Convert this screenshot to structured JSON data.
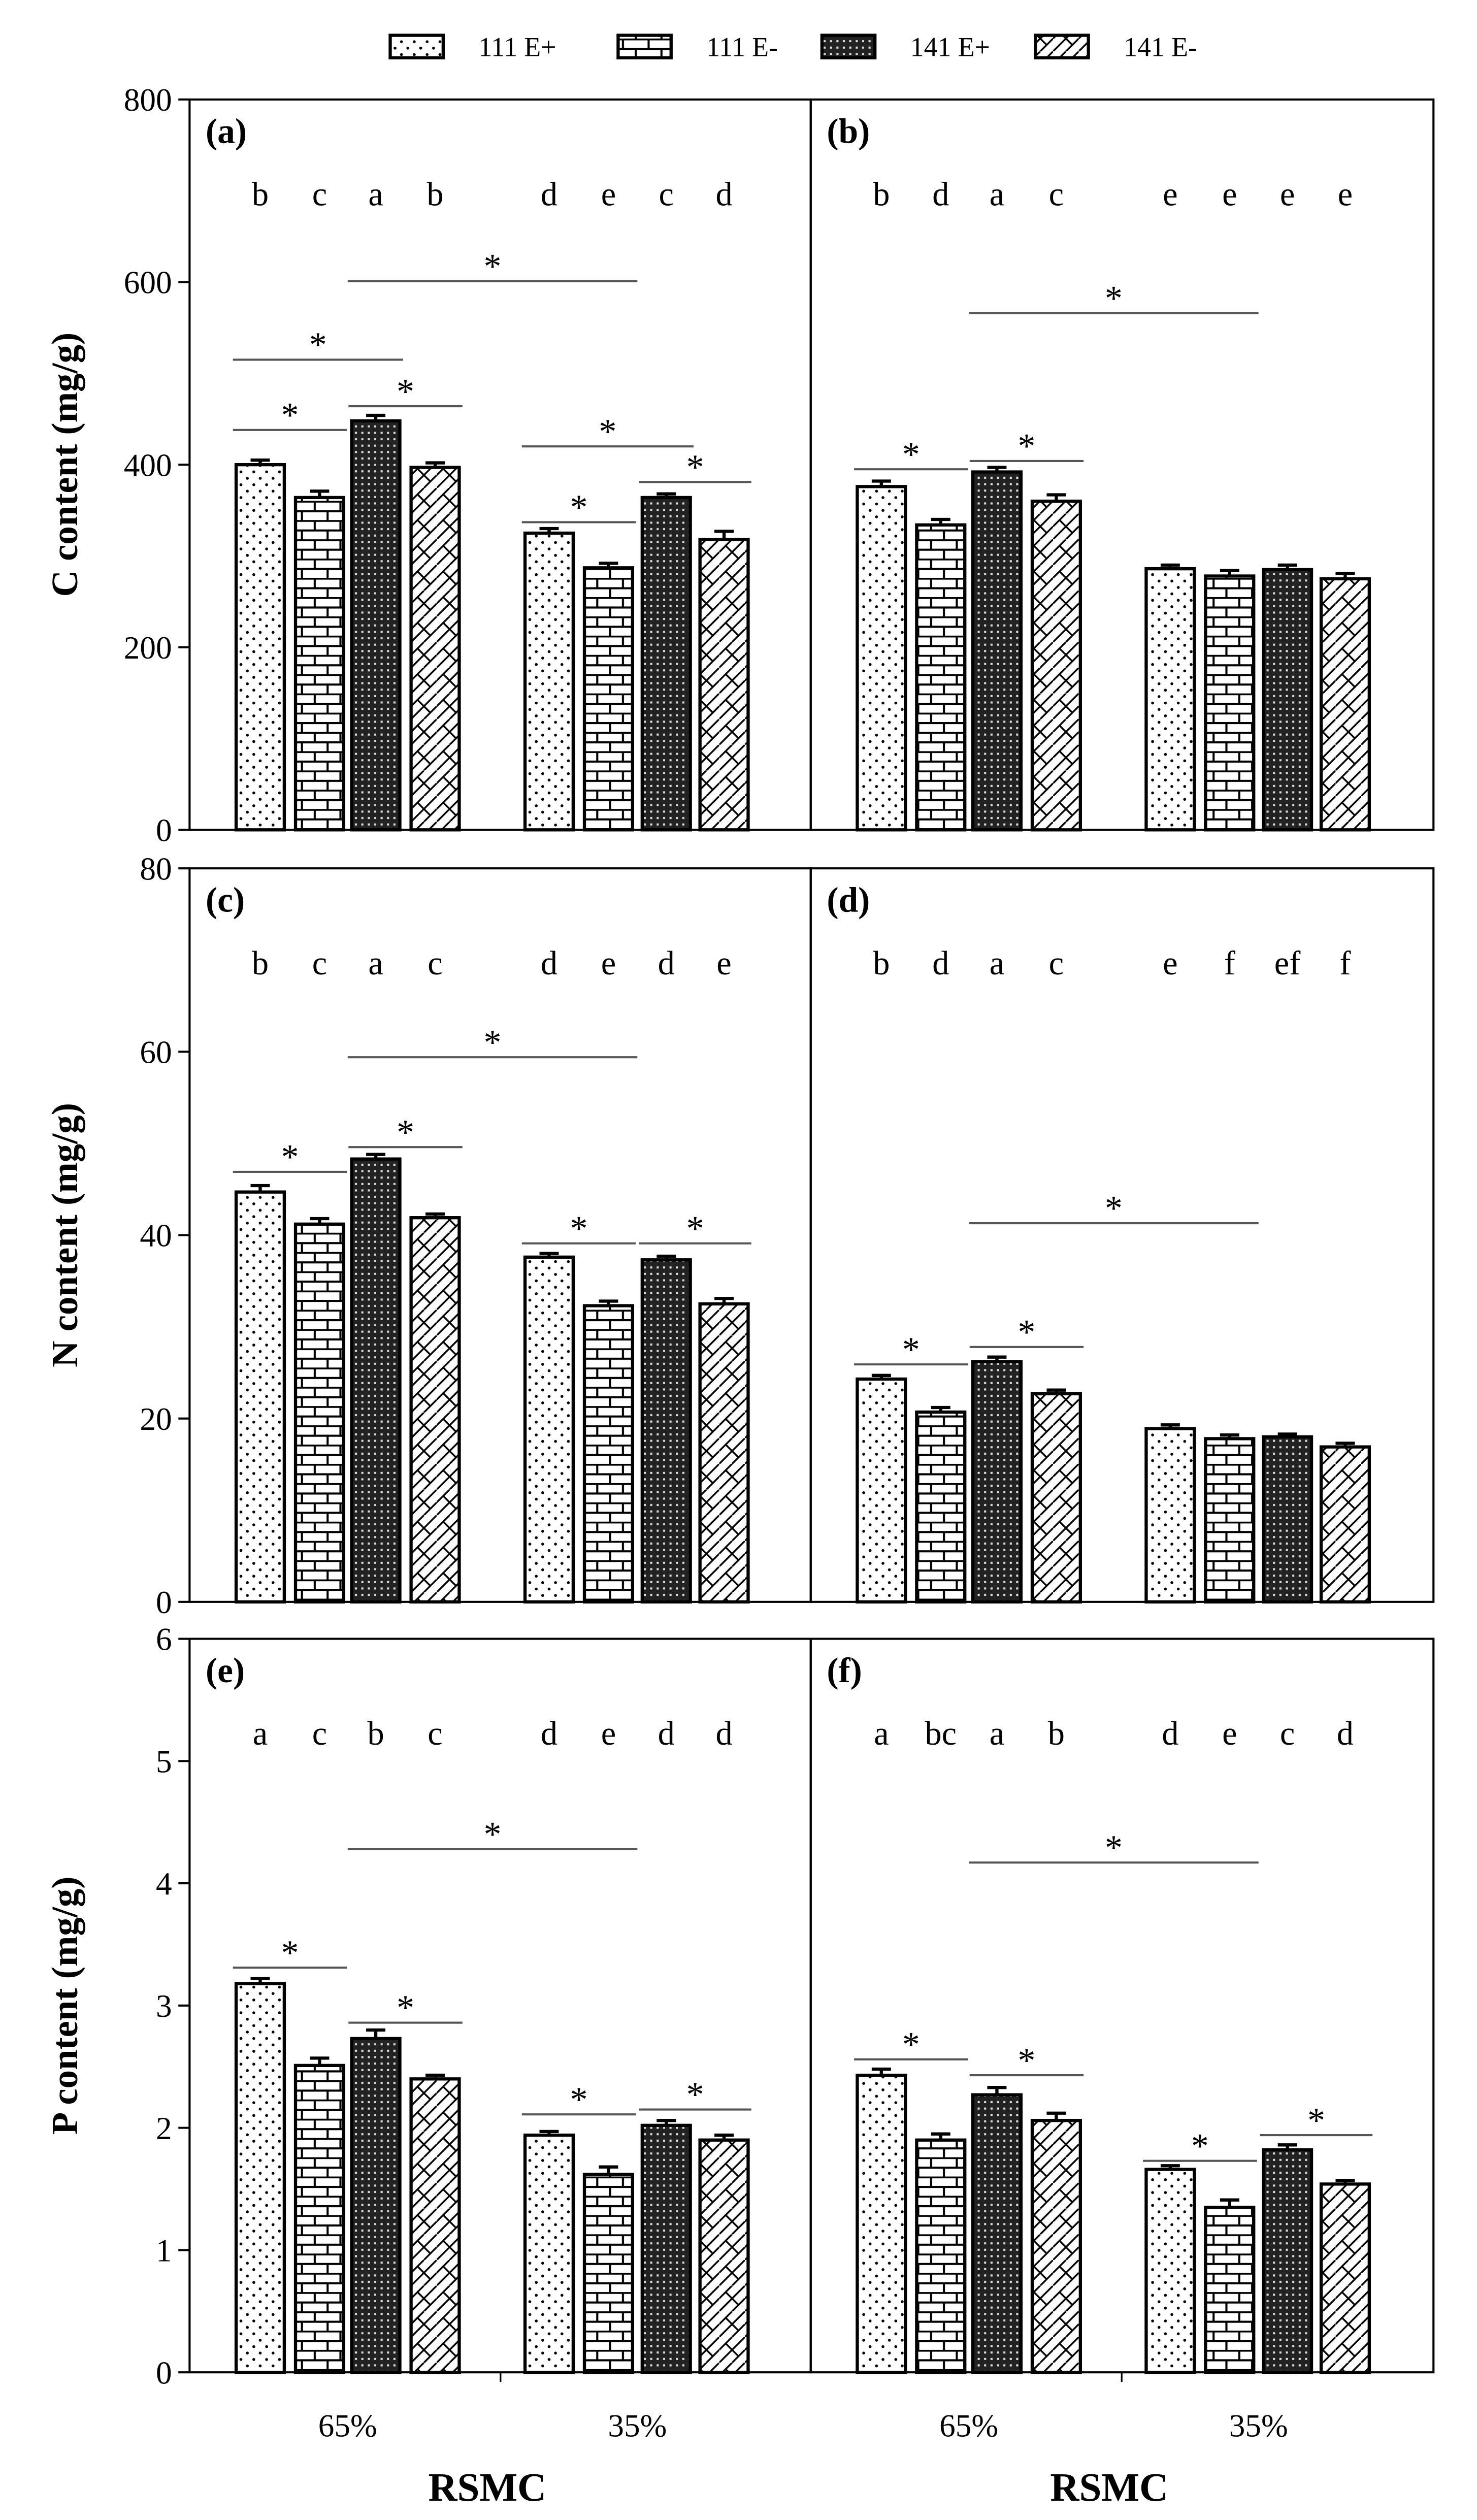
{
  "legend": [
    {
      "label": "111 E+",
      "pattern": "dots"
    },
    {
      "label": "111 E-",
      "pattern": "brick"
    },
    {
      "label": "141 E+",
      "pattern": "crosshatch"
    },
    {
      "label": "141 E-",
      "pattern": "zigzag"
    }
  ],
  "xlabel": "RSMC",
  "categories": [
    "65%",
    "35%"
  ],
  "chart_data": [
    {
      "type": "bar",
      "panel": "(a)",
      "ylabel": "C content (mg/g)",
      "ylim": [
        0,
        800
      ],
      "yticks": [
        0,
        200,
        400,
        600,
        800
      ],
      "show_yaxis": true,
      "series": [
        {
          "name": "111 E+",
          "values": [
            400,
            325
          ],
          "err": [
            5,
            5
          ]
        },
        {
          "name": "111 E-",
          "values": [
            364,
            287
          ],
          "err": [
            7,
            5
          ]
        },
        {
          "name": "141 E+",
          "values": [
            448,
            364
          ],
          "err": [
            6,
            4
          ]
        },
        {
          "name": "141 E-",
          "values": [
            397,
            318
          ],
          "err": [
            5,
            9
          ]
        }
      ],
      "letters": [
        "b",
        "c",
        "a",
        "b",
        "d",
        "e",
        "c",
        "d"
      ],
      "sig": [
        {
          "from": 0,
          "to": 1,
          "y": 438
        },
        {
          "from": 0,
          "to": 2,
          "y": 515
        },
        {
          "from": 2,
          "to": 3,
          "y": 464
        },
        {
          "from": 1.5,
          "to": 5.5,
          "y": 601
        },
        {
          "from": 4,
          "to": 5,
          "y": 337
        },
        {
          "from": 4,
          "to": 6,
          "y": 420
        },
        {
          "from": 6,
          "to": 7,
          "y": 381
        }
      ]
    },
    {
      "type": "bar",
      "panel": "(b)",
      "ylabel": "",
      "ylim": [
        0,
        800
      ],
      "yticks": [
        0,
        200,
        400,
        600,
        800
      ],
      "show_yaxis": false,
      "series": [
        {
          "name": "111 E+",
          "values": [
            376,
            286
          ],
          "err": [
            6,
            4
          ]
        },
        {
          "name": "111 E-",
          "values": [
            334,
            278
          ],
          "err": [
            6,
            6
          ]
        },
        {
          "name": "141 E+",
          "values": [
            392,
            285
          ],
          "err": [
            5,
            5
          ]
        },
        {
          "name": "141 E-",
          "values": [
            360,
            275
          ],
          "err": [
            7,
            6
          ]
        }
      ],
      "letters": [
        "b",
        "d",
        "a",
        "c",
        "e",
        "e",
        "e",
        "e"
      ],
      "sig": [
        {
          "from": 0,
          "to": 1,
          "y": 395
        },
        {
          "from": 2,
          "to": 3,
          "y": 404
        },
        {
          "from": 1.5,
          "to": 5.5,
          "y": 566
        }
      ]
    },
    {
      "type": "bar",
      "panel": "(c)",
      "ylabel": "N content (mg/g)",
      "ylim": [
        0,
        80
      ],
      "yticks": [
        0,
        20,
        40,
        60,
        80
      ],
      "show_yaxis": true,
      "series": [
        {
          "name": "111 E+",
          "values": [
            44.7,
            37.6
          ],
          "err": [
            0.7,
            0.4
          ]
        },
        {
          "name": "111 E-",
          "values": [
            41.2,
            32.3
          ],
          "err": [
            0.6,
            0.5
          ]
        },
        {
          "name": "141 E+",
          "values": [
            48.3,
            37.3
          ],
          "err": [
            0.5,
            0.4
          ]
        },
        {
          "name": "141 E-",
          "values": [
            41.9,
            32.5
          ],
          "err": [
            0.4,
            0.6
          ]
        }
      ],
      "letters": [
        "b",
        "c",
        "a",
        "c",
        "d",
        "e",
        "d",
        "e"
      ],
      "sig": [
        {
          "from": 0,
          "to": 1,
          "y": 46.9
        },
        {
          "from": 2,
          "to": 3,
          "y": 49.6
        },
        {
          "from": 1.5,
          "to": 5.5,
          "y": 59.4
        },
        {
          "from": 4,
          "to": 5,
          "y": 39.1
        },
        {
          "from": 6,
          "to": 7,
          "y": 39.1
        }
      ]
    },
    {
      "type": "bar",
      "panel": "(d)",
      "ylabel": "",
      "ylim": [
        0,
        80
      ],
      "yticks": [
        0,
        20,
        40,
        60,
        80
      ],
      "show_yaxis": false,
      "series": [
        {
          "name": "111 E+",
          "values": [
            24.3,
            18.9
          ],
          "err": [
            0.4,
            0.4
          ]
        },
        {
          "name": "111 E-",
          "values": [
            20.7,
            17.8
          ],
          "err": [
            0.5,
            0.4
          ]
        },
        {
          "name": "141 E+",
          "values": [
            26.2,
            18.0
          ],
          "err": [
            0.5,
            0.3
          ]
        },
        {
          "name": "141 E-",
          "values": [
            22.7,
            16.9
          ],
          "err": [
            0.4,
            0.4
          ]
        }
      ],
      "letters": [
        "b",
        "d",
        "a",
        "c",
        "e",
        "f",
        "ef",
        "f"
      ],
      "sig": [
        {
          "from": 0,
          "to": 1,
          "y": 25.9
        },
        {
          "from": 2,
          "to": 3,
          "y": 27.8
        },
        {
          "from": 1.5,
          "to": 5.5,
          "y": 41.3
        }
      ]
    },
    {
      "type": "bar",
      "panel": "(e)",
      "ylabel": "P content (mg/g)",
      "ylim": [
        0,
        6
      ],
      "yticks": [
        0,
        1,
        2,
        3,
        4,
        5,
        6
      ],
      "show_yaxis": true,
      "series": [
        {
          "name": "111 E+",
          "values": [
            3.18,
            1.94
          ],
          "err": [
            0.04,
            0.03
          ]
        },
        {
          "name": "111 E-",
          "values": [
            2.51,
            1.62
          ],
          "err": [
            0.06,
            0.06
          ]
        },
        {
          "name": "141 E+",
          "values": [
            2.73,
            2.02
          ],
          "err": [
            0.07,
            0.04
          ]
        },
        {
          "name": "141 E-",
          "values": [
            2.4,
            1.9
          ],
          "err": [
            0.03,
            0.04
          ]
        }
      ],
      "letters": [
        "a",
        "c",
        "b",
        "c",
        "d",
        "e",
        "d",
        "d"
      ],
      "sig": [
        {
          "from": 0,
          "to": 1,
          "y": 3.31
        },
        {
          "from": 2,
          "to": 3,
          "y": 2.86
        },
        {
          "from": 1.5,
          "to": 5.5,
          "y": 4.28
        },
        {
          "from": 4,
          "to": 5,
          "y": 2.11
        },
        {
          "from": 6,
          "to": 7,
          "y": 2.15
        }
      ]
    },
    {
      "type": "bar",
      "panel": "(f)",
      "ylabel": "",
      "ylim": [
        0,
        6
      ],
      "yticks": [
        0,
        1,
        2,
        3,
        4,
        5,
        6
      ],
      "show_yaxis": false,
      "series": [
        {
          "name": "111 E+",
          "values": [
            2.43,
            1.66
          ],
          "err": [
            0.05,
            0.03
          ]
        },
        {
          "name": "111 E-",
          "values": [
            1.9,
            1.35
          ],
          "err": [
            0.05,
            0.06
          ]
        },
        {
          "name": "141 E+",
          "values": [
            2.27,
            1.82
          ],
          "err": [
            0.06,
            0.04
          ]
        },
        {
          "name": "141 E-",
          "values": [
            2.06,
            1.54
          ],
          "err": [
            0.06,
            0.03
          ]
        }
      ],
      "letters": [
        "a",
        "bc",
        "a",
        "b",
        "d",
        "e",
        "c",
        "d"
      ],
      "sig": [
        {
          "from": 0,
          "to": 1,
          "y": 2.56
        },
        {
          "from": 2,
          "to": 3,
          "y": 2.43
        },
        {
          "from": 1.5,
          "to": 5.5,
          "y": 4.17
        },
        {
          "from": 4,
          "to": 5,
          "y": 1.73
        },
        {
          "from": 6,
          "to": 7,
          "y": 1.94
        }
      ]
    }
  ]
}
